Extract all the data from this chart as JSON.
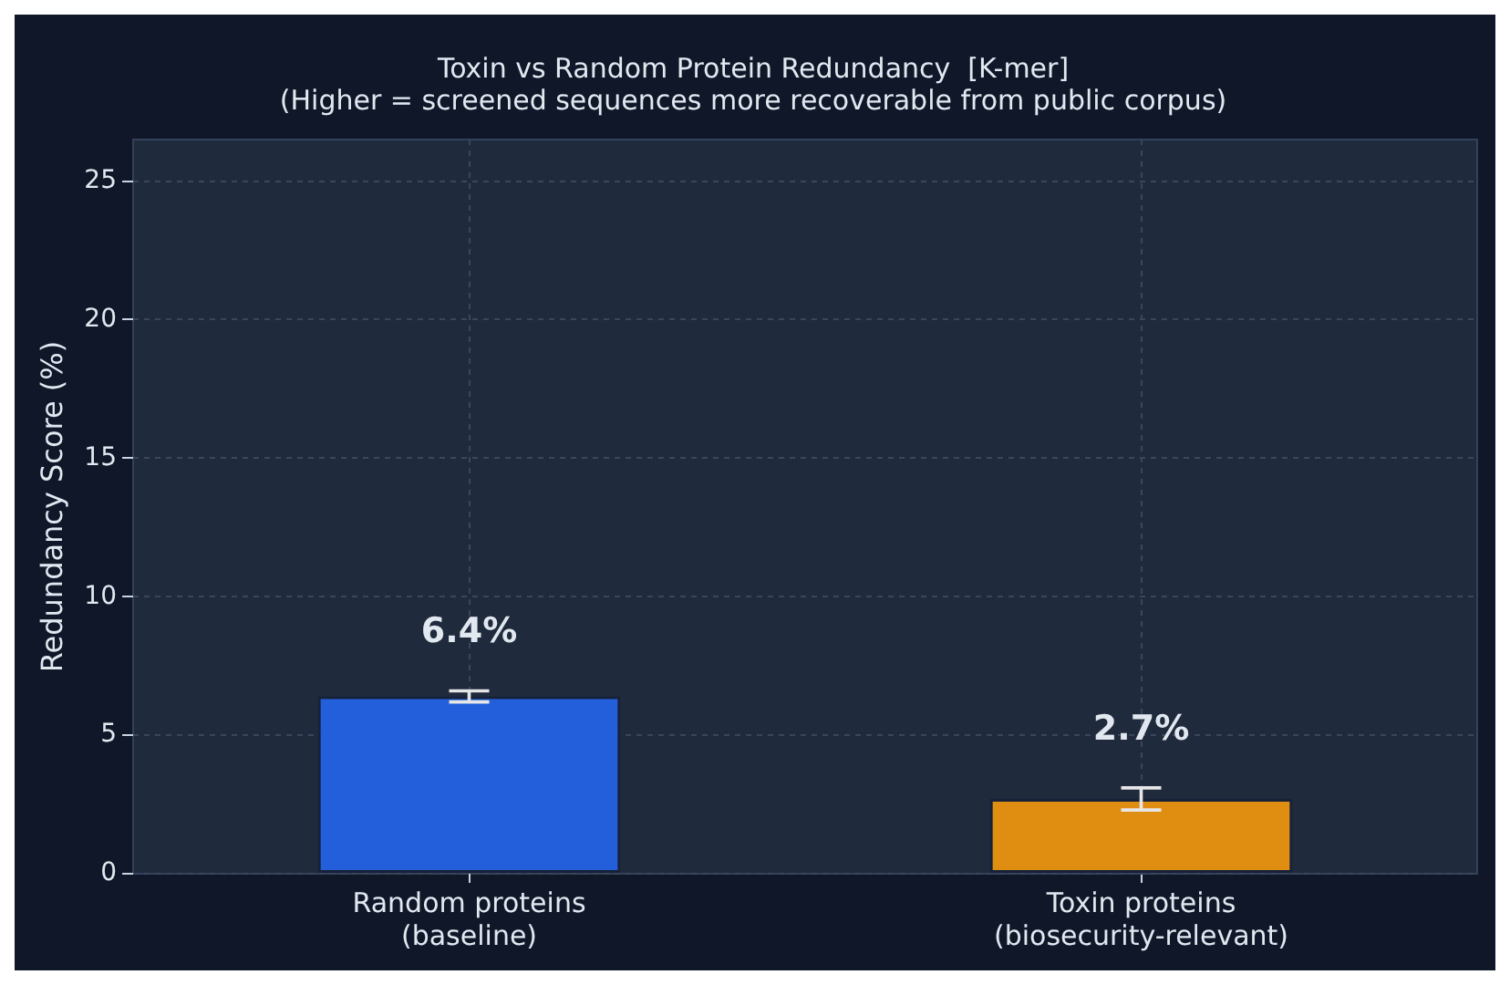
{
  "chart_data": {
    "type": "bar",
    "title": "Toxin vs Random Protein Redundancy  [K-mer]",
    "subtitle": "(Higher = screened sequences more recoverable from public corpus)",
    "ylabel": "Redundancy Score (%)",
    "categories": [
      "Random proteins\n(baseline)",
      "Toxin proteins\n(biosecurity-relevant)"
    ],
    "values": [
      6.4,
      2.7
    ],
    "colors": [
      "#235fdb",
      "#df8e12"
    ],
    "errors": [
      0.2,
      0.4
    ],
    "value_labels": [
      "6.4%",
      "2.7%"
    ],
    "ylim": [
      0,
      26.5
    ],
    "yticks": [
      0,
      5,
      10,
      15,
      20,
      25
    ],
    "grid": true
  }
}
